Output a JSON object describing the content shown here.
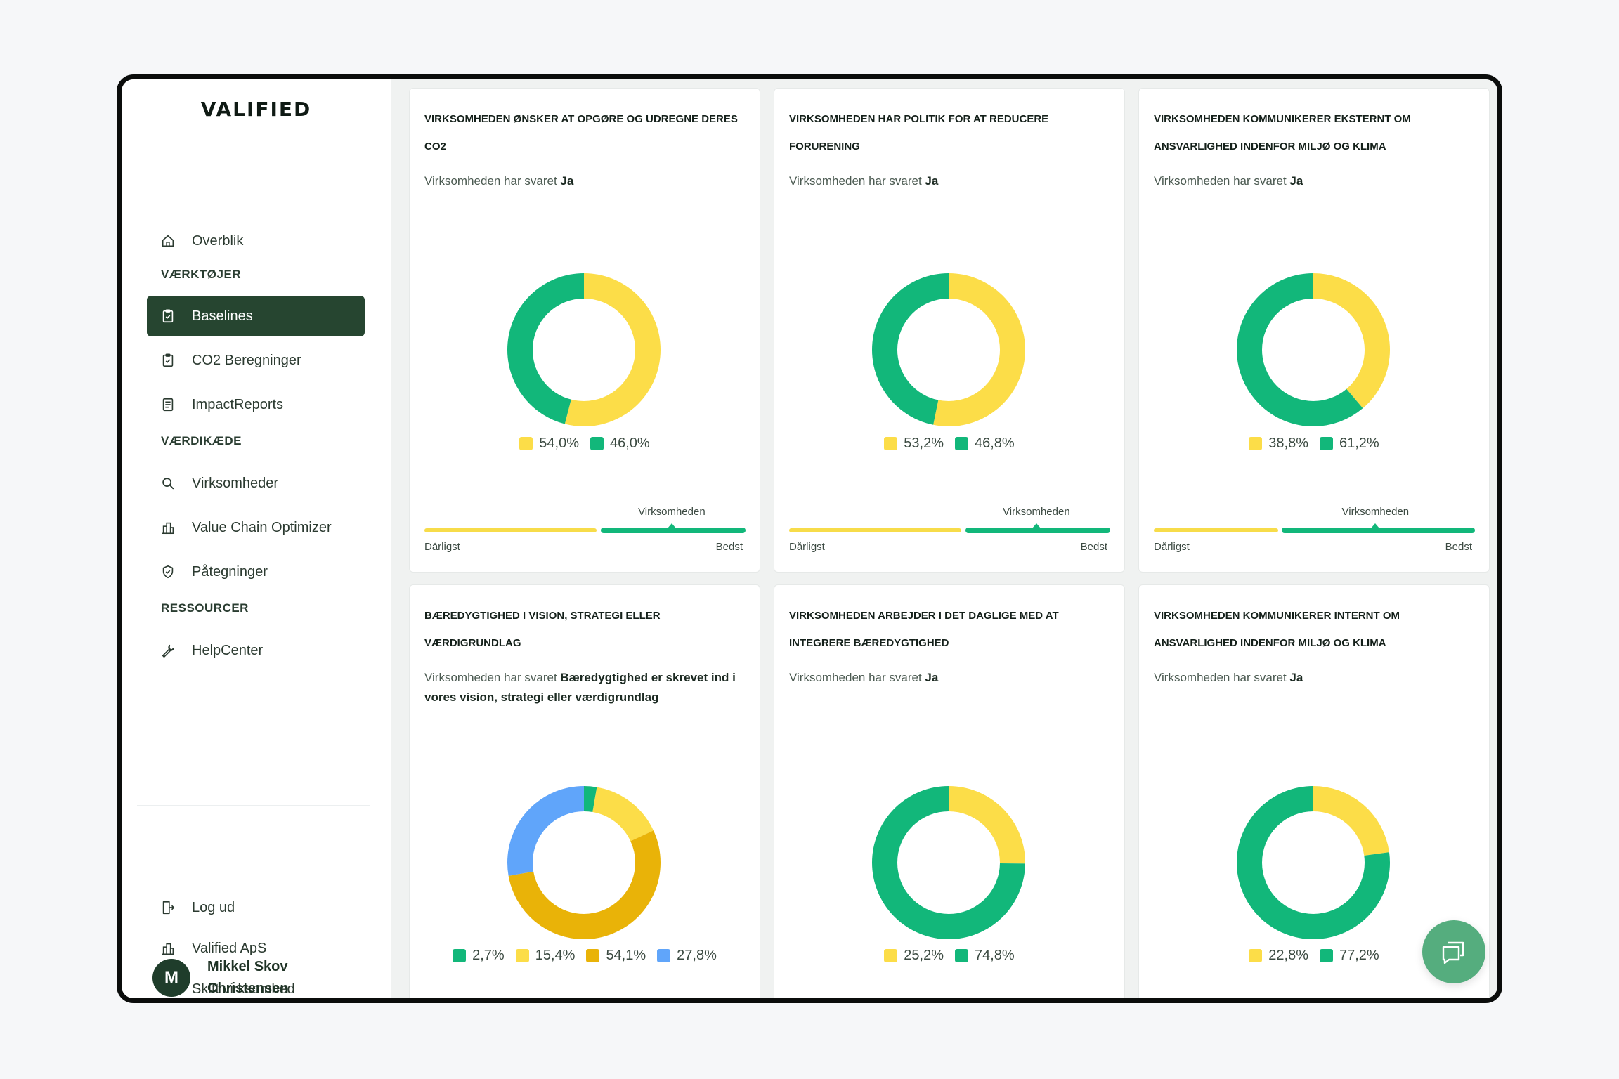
{
  "app": {
    "logo": "VALIFIED"
  },
  "sidebar": {
    "items": [
      {
        "id": "overblik",
        "label": "Overblik",
        "icon": "home-icon"
      },
      {
        "id": "baselines",
        "label": "Baselines",
        "icon": "clipboard-check-icon",
        "active": true
      },
      {
        "id": "co2",
        "label": "CO2 Beregninger",
        "icon": "clipboard-check-icon"
      },
      {
        "id": "impact",
        "label": "ImpactReports",
        "icon": "document-list-icon"
      },
      {
        "id": "virksomheder",
        "label": "Virksomheder",
        "icon": "search-icon"
      },
      {
        "id": "vco",
        "label": "Value Chain Optimizer",
        "icon": "building-chart-icon"
      },
      {
        "id": "paategninger",
        "label": "Påtegninger",
        "icon": "shield-check-icon"
      },
      {
        "id": "helpcenter",
        "label": "HelpCenter",
        "icon": "wrench-icon"
      }
    ],
    "sections": {
      "tools": "VÆRKTØJER",
      "valuechain": "VÆRDIKÆDE",
      "resources": "RESSOURCER"
    },
    "bottom": [
      {
        "id": "logout",
        "label": "Log ud",
        "icon": "logout-icon"
      },
      {
        "id": "company",
        "label": "Valified ApS",
        "icon": "building-icon"
      },
      {
        "id": "switch",
        "label": "Skift virksomhed",
        "icon": "refresh-icon"
      }
    ],
    "user": {
      "initial": "M",
      "name": "Mikkel Skov Christensen"
    }
  },
  "answer_prefix": "Virksomheden har svaret",
  "scale_labels": {
    "company": "Virksomheden",
    "worst": "Dårligst",
    "best": "Bedst"
  },
  "colors": {
    "green": "#12b77a",
    "yellow": "#fcdd48",
    "gold": "#e9b308",
    "blue": "#60a5fa",
    "dark_green": "#264530"
  },
  "cards": [
    {
      "title": "VIRKSOMHEDEN ØNSKER AT OPGØRE OG UDREGNE DERES CO2",
      "answer": "Ja",
      "segments": [
        {
          "value": 54.0,
          "label": "54,0%",
          "color": "#fcdd48"
        },
        {
          "value": 46.0,
          "label": "46,0%",
          "color": "#12b77a"
        }
      ],
      "scale_position": 0.77
    },
    {
      "title": "VIRKSOMHEDEN HAR POLITIK FOR AT REDUCERE FORURENING",
      "answer": "Ja",
      "segments": [
        {
          "value": 53.2,
          "label": "53,2%",
          "color": "#fcdd48"
        },
        {
          "value": 46.8,
          "label": "46,8%",
          "color": "#12b77a"
        }
      ],
      "scale_position": 0.77
    },
    {
      "title": "VIRKSOMHEDEN KOMMUNIKERER EKSTERNT OM ANSVARLIGHED INDENFOR MILJØ OG KLIMA",
      "answer": "Ja",
      "segments": [
        {
          "value": 38.8,
          "label": "38,8%",
          "color": "#fcdd48"
        },
        {
          "value": 61.2,
          "label": "61,2%",
          "color": "#12b77a"
        }
      ],
      "scale_position": 0.69
    },
    {
      "title": "BÆREDYGTIGHED I VISION, STRATEGI ELLER VÆRDIGRUNDLAG",
      "answer": "Bæredygtighed er skrevet ind i vores vision, strategi eller værdigrundlag",
      "segments": [
        {
          "value": 2.7,
          "label": "2,7%",
          "color": "#12b77a"
        },
        {
          "value": 15.4,
          "label": "15,4%",
          "color": "#fcdd48"
        },
        {
          "value": 54.1,
          "label": "54,1%",
          "color": "#e9b308"
        },
        {
          "value": 27.8,
          "label": "27,8%",
          "color": "#60a5fa"
        }
      ]
    },
    {
      "title": "VIRKSOMHEDEN ARBEJDER I DET DAGLIGE MED AT INTEGRERE BÆREDYGTIGHED",
      "answer": "Ja",
      "segments": [
        {
          "value": 25.2,
          "label": "25,2%",
          "color": "#fcdd48"
        },
        {
          "value": 74.8,
          "label": "74,8%",
          "color": "#12b77a"
        }
      ]
    },
    {
      "title": "VIRKSOMHEDEN KOMMUNIKERER INTERNT OM ANSVARLIGHED INDENFOR MILJØ OG KLIMA",
      "answer": "Ja",
      "segments": [
        {
          "value": 22.8,
          "label": "22,8%",
          "color": "#fcdd48"
        },
        {
          "value": 77.2,
          "label": "77,2%",
          "color": "#12b77a"
        }
      ]
    }
  ],
  "chat": {
    "icon": "chat-icon"
  }
}
